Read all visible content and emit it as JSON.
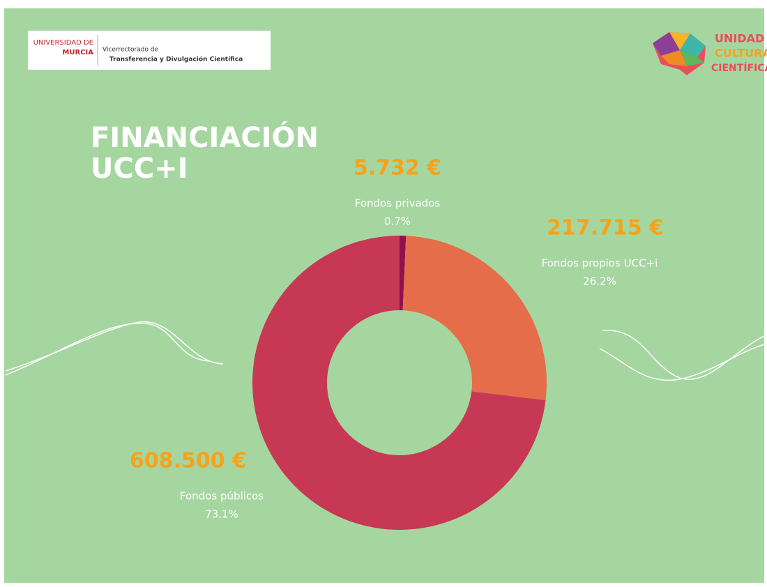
{
  "header": {
    "university_line1": "UNIVERSIDAD DE",
    "university_line2": "MURCIA",
    "vice_line1": "Vicerrectorado de",
    "vice_line2": "Transferencia y Divulgación Científica",
    "unit_line1": "UNIDAD",
    "unit_line2": "CULTURA",
    "unit_line3": "CIENTÍFICA"
  },
  "chart_data": {
    "type": "donut",
    "title_lines": [
      "FINANCIACIÓN",
      "UCC+I"
    ],
    "categories": [
      "Fondos privados",
      "Fondos propios UCC+i",
      "Fondos públicos"
    ],
    "values": [
      0.7,
      26.2,
      73.1
    ],
    "value_labels": [
      "0.7%",
      "26.2%",
      "73.1%"
    ],
    "amount_labels": [
      "5.732 €",
      "217.715 €",
      "608.500 €"
    ],
    "colors": [
      "#8e1250",
      "#e66d4a",
      "#c63854"
    ]
  }
}
